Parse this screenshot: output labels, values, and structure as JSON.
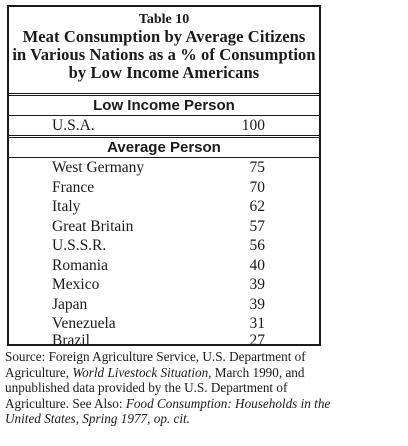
{
  "table": {
    "number": "Table 10",
    "title_lines": [
      "Meat Consumption by Average Citizens",
      "in Various Nations as a % of Consumption",
      "by Low Income Americans"
    ],
    "low_income_header": "Low Income Person",
    "low_income_row": {
      "name": "U.S.A.",
      "value": "100"
    },
    "average_header": "Average Person",
    "rows": [
      {
        "name": "West Germany",
        "value": "75"
      },
      {
        "name": "France",
        "value": "70"
      },
      {
        "name": "Italy",
        "value": "62"
      },
      {
        "name": "Great Britain",
        "value": "57"
      },
      {
        "name": "U.S.S.R.",
        "value": "56"
      },
      {
        "name": "Romania",
        "value": "40"
      },
      {
        "name": "Mexico",
        "value": "39"
      },
      {
        "name": "Japan",
        "value": "39"
      },
      {
        "name": "Venezuela",
        "value": "31"
      },
      {
        "name": "Brazil",
        "value": "27"
      }
    ]
  },
  "source": {
    "part1": "Source: Foreign Agriculture Service, U.S. Department of Agriculture, ",
    "italic1": "World Livestock Situation",
    "part2": ", March 1990, and unpublished data provided by the U.S. Department of Agriculture.  See Also: ",
    "italic2": "Food Consumption: Households in the United States, Spring 1977, op. cit."
  }
}
